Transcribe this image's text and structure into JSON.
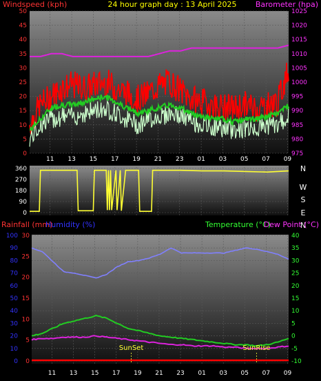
{
  "chart_data": [
    {
      "type": "line",
      "title": "24 hour graph day : 13 April 2025",
      "ylabel": "Windspeed (kph)",
      "y2label": "Barometer (hpa)",
      "ylim": [
        0,
        50
      ],
      "y2lim": [
        975,
        1025
      ],
      "yticks": [
        "0",
        "5",
        "10",
        "15",
        "20",
        "25",
        "30",
        "35",
        "40",
        "45",
        "50"
      ],
      "y2ticks": [
        "975",
        "980",
        "985",
        "990",
        "995",
        "1000",
        "1005",
        "1010",
        "1015",
        "1020",
        "1025"
      ],
      "xticks": [
        "11",
        "13",
        "15",
        "17",
        "19",
        "21",
        "23",
        "01",
        "03",
        "05",
        "07",
        "09"
      ],
      "grid": true,
      "colors": {
        "gust": "#ff0000",
        "average": "#22cc22",
        "speed": "#ccffcc",
        "barometer": "#dd22dd",
        "title": "#ffff00",
        "axis_left": "#ff3333",
        "axis_right": "#ff33ff"
      },
      "series": [],
      "x_hours": [
        0,
        1,
        2,
        3,
        4,
        5,
        6,
        7,
        8,
        9,
        10,
        11,
        12,
        13,
        14,
        15,
        16,
        17,
        18,
        19,
        20,
        21,
        22,
        23,
        24
      ],
      "gust_kph": [
        10,
        17,
        20,
        23,
        24,
        23,
        24,
        25,
        23,
        21,
        19,
        21,
        24,
        25,
        22,
        19,
        18,
        17,
        16,
        16,
        17,
        16,
        17,
        18,
        30
      ],
      "average_kph": [
        8,
        12,
        16,
        17,
        17,
        18,
        19,
        20,
        18,
        16,
        14,
        15,
        16,
        17,
        16,
        14,
        13,
        12,
        12,
        11,
        12,
        12,
        13,
        14,
        17
      ],
      "speed_kph": [
        5,
        10,
        12,
        13,
        13,
        14,
        15,
        16,
        14,
        12,
        10,
        12,
        13,
        14,
        13,
        11,
        10,
        9,
        9,
        8,
        9,
        9,
        10,
        10,
        13
      ],
      "barometer_hpa": [
        1009,
        1009,
        1010,
        1010,
        1009,
        1009,
        1009,
        1009,
        1009,
        1009,
        1009,
        1009,
        1010,
        1011,
        1011,
        1012,
        1012,
        1012,
        1012,
        1012,
        1012,
        1012,
        1012,
        1012,
        1013
      ]
    },
    {
      "type": "line",
      "title": "",
      "ylabel": "",
      "ylim": [
        0,
        360
      ],
      "yticks": [
        "0",
        "90",
        "180",
        "270",
        "360"
      ],
      "compass_labels": [
        "N",
        "W",
        "S",
        "E",
        "N"
      ],
      "xticks": [
        "11",
        "13",
        "15",
        "17",
        "19",
        "21",
        "23",
        "01",
        "03",
        "05",
        "07",
        "09"
      ],
      "grid": true,
      "colors": {
        "direction": "#ffff33",
        "axis_left": "#ffffff",
        "axis_right": "#ffffff"
      },
      "series": [],
      "x_hours": [
        0,
        0.9,
        1.0,
        4.4,
        4.5,
        5.9,
        6.0,
        7.1,
        7.2,
        7.3,
        7.4,
        7.5,
        7.6,
        8.0,
        8.1,
        8.4,
        8.5,
        8.9,
        9.0,
        10.1,
        10.2,
        11.3,
        11.4,
        12,
        14,
        16,
        18,
        20,
        22,
        24
      ],
      "direction_deg": [
        10,
        10,
        345,
        345,
        15,
        15,
        345,
        345,
        20,
        345,
        20,
        345,
        20,
        345,
        20,
        345,
        15,
        345,
        345,
        345,
        10,
        10,
        345,
        345,
        345,
        340,
        340,
        335,
        330,
        340
      ]
    },
    {
      "type": "line",
      "title": "",
      "ylabel": "Rainfall (mm)",
      "ylabel2": "Humidity (%)",
      "y2label": "Temperature (°C)",
      "y2label2": "Dew Point (°C)",
      "rain_ylim": [
        0,
        30
      ],
      "rain_ticks": [
        "0",
        "5",
        "10",
        "15",
        "20",
        "25",
        "30"
      ],
      "humidity_ylim": [
        0,
        100
      ],
      "humidity_ticks": [
        "0",
        "10",
        "20",
        "30",
        "40",
        "50",
        "60",
        "70",
        "80",
        "90",
        "100"
      ],
      "temp_ylim": [
        -10,
        40
      ],
      "temp_ticks": [
        "-10",
        "-5",
        "0",
        "5",
        "10",
        "15",
        "20",
        "25",
        "30",
        "35",
        "40"
      ],
      "xticks": [
        "11",
        "13",
        "15",
        "17",
        "19",
        "21",
        "23",
        "01",
        "03",
        "05",
        "07",
        "09"
      ],
      "annotations": [
        {
          "text": "SunSet",
          "x": 9.3
        },
        {
          "text": "SunRise",
          "x": 21.0
        }
      ],
      "grid": true,
      "colors": {
        "humidity": "#8080ff",
        "temperature": "#22cc22",
        "dewpoint": "#dd22dd",
        "rainfall": "#ff0000",
        "axis_rain": "#ff3333",
        "axis_humidity": "#3333ff",
        "axis_temp": "#33ff33",
        "axis_dew": "#ff33ff",
        "annotation": "#ffff33"
      },
      "series": [],
      "x_hours": [
        0,
        1,
        2,
        3,
        4,
        5,
        6,
        7,
        8,
        9,
        10,
        11,
        12,
        13,
        14,
        15,
        16,
        17,
        18,
        19,
        20,
        21,
        22,
        23,
        24
      ],
      "humidity_pct": [
        90,
        87,
        79,
        71,
        70,
        68,
        66,
        69,
        75,
        79,
        80,
        82,
        85,
        90,
        86,
        86,
        86,
        86,
        86,
        88,
        90,
        89,
        87,
        85,
        81
      ],
      "temperature_c": [
        0,
        1,
        3,
        5,
        6,
        7,
        8,
        7,
        5,
        3,
        2,
        1,
        0,
        -0.5,
        -1,
        -1.5,
        -2,
        -2.5,
        -3,
        -3.5,
        -3.5,
        -4,
        -3.5,
        -2.5,
        -1
      ],
      "dewpoint_c": [
        -1.5,
        -1,
        -1,
        -0.5,
        -0.5,
        -0.5,
        0,
        -0.5,
        -1,
        -1.5,
        -2,
        -2.5,
        -3,
        -3.5,
        -3.5,
        -4,
        -4,
        -4,
        -4.5,
        -4.5,
        -5,
        -5,
        -5,
        -4.5,
        -4
      ],
      "rainfall_mm": [
        0,
        0,
        0,
        0,
        0,
        0,
        0,
        0,
        0,
        0,
        0,
        0,
        0,
        0,
        0,
        0,
        0,
        0,
        0,
        0,
        0,
        0,
        0,
        0,
        0
      ]
    }
  ]
}
